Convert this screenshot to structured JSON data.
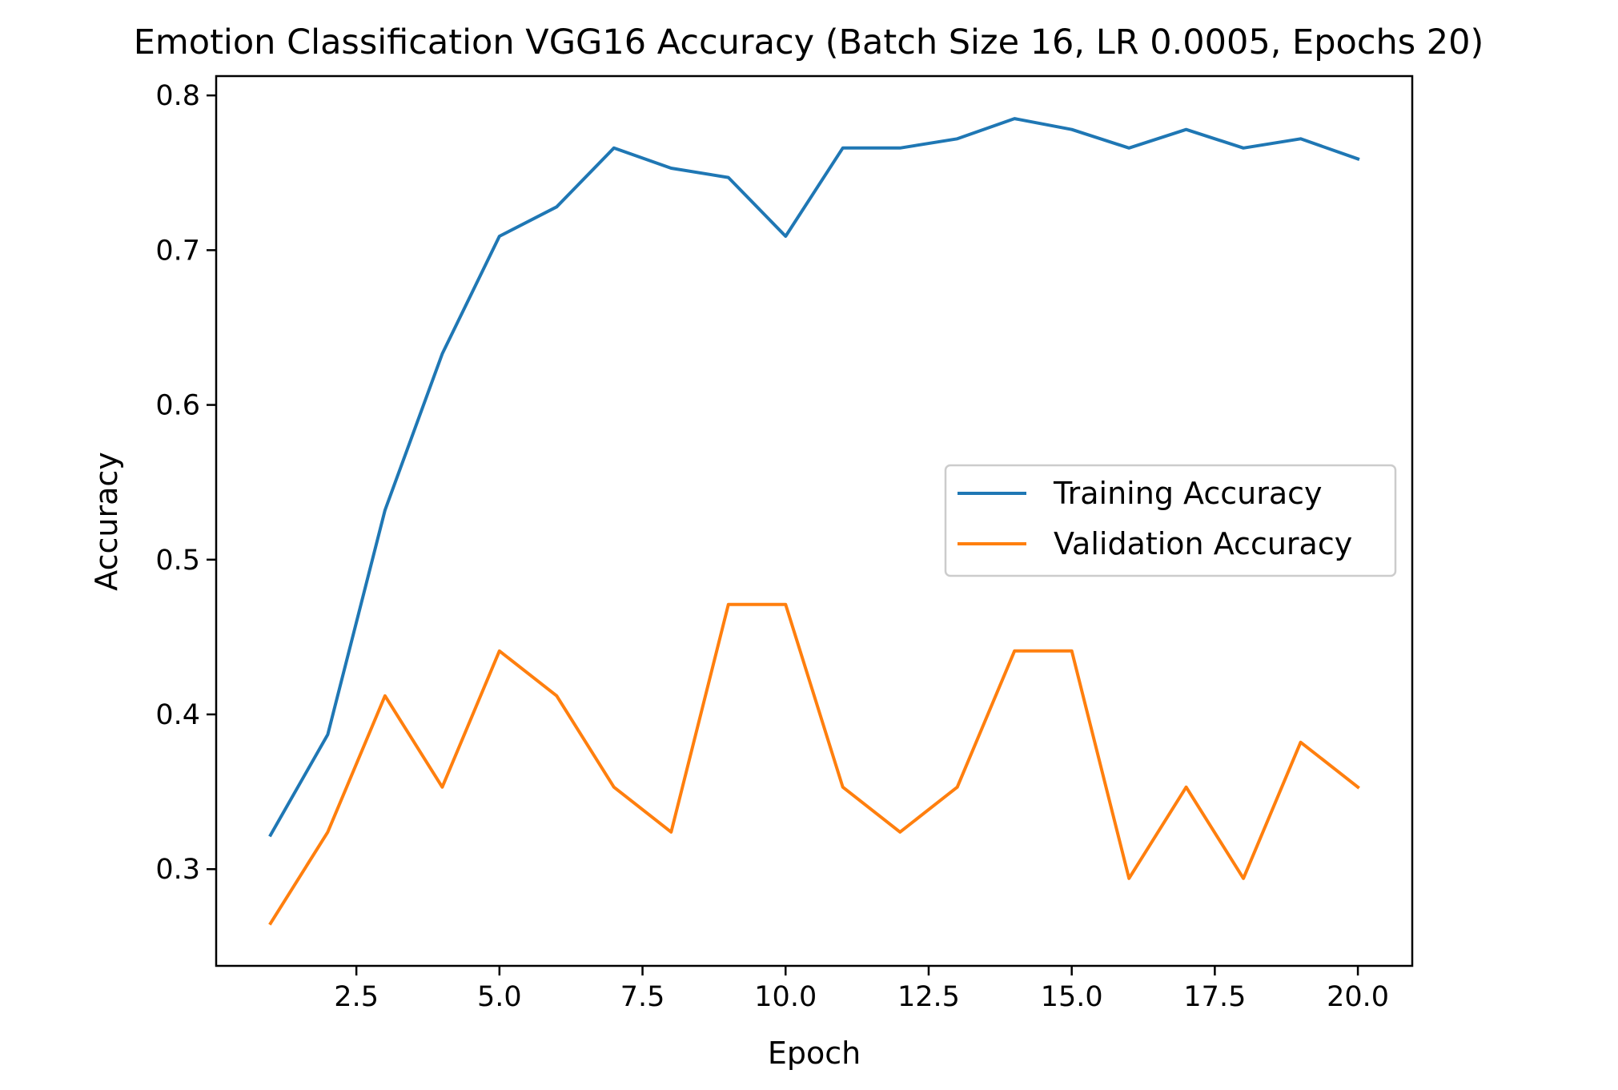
{
  "chart_data": {
    "type": "line",
    "title": "Emotion Classification VGG16 Accuracy (Batch Size 16, LR 0.0005, Epochs 20)",
    "xlabel": "Epoch",
    "ylabel": "Accuracy",
    "xlim": [
      0.05,
      20.95
    ],
    "ylim": [
      0.2375,
      0.8125
    ],
    "xticks": [
      2.5,
      5.0,
      7.5,
      10.0,
      12.5,
      15.0,
      17.5,
      20.0
    ],
    "xtick_labels": [
      "2.5",
      "5.0",
      "7.5",
      "10.0",
      "12.5",
      "15.0",
      "17.5",
      "20.0"
    ],
    "yticks": [
      0.3,
      0.4,
      0.5,
      0.6,
      0.7,
      0.8
    ],
    "ytick_labels": [
      "0.3",
      "0.4",
      "0.5",
      "0.6",
      "0.7",
      "0.8"
    ],
    "grid": false,
    "legend_position": "center-right",
    "x": [
      1,
      2,
      3,
      4,
      5,
      6,
      7,
      8,
      9,
      10,
      11,
      12,
      13,
      14,
      15,
      16,
      17,
      18,
      19,
      20
    ],
    "series": [
      {
        "name": "Training Accuracy",
        "color": "#1f77b4",
        "values": [
          0.322,
          0.387,
          0.532,
          0.633,
          0.709,
          0.728,
          0.766,
          0.753,
          0.747,
          0.709,
          0.766,
          0.766,
          0.772,
          0.785,
          0.778,
          0.766,
          0.778,
          0.766,
          0.772,
          0.759
        ]
      },
      {
        "name": "Validation Accuracy",
        "color": "#ff7f0e",
        "values": [
          0.265,
          0.324,
          0.412,
          0.353,
          0.441,
          0.412,
          0.353,
          0.324,
          0.471,
          0.471,
          0.353,
          0.324,
          0.353,
          0.441,
          0.441,
          0.294,
          0.353,
          0.294,
          0.382,
          0.353
        ]
      }
    ]
  }
}
